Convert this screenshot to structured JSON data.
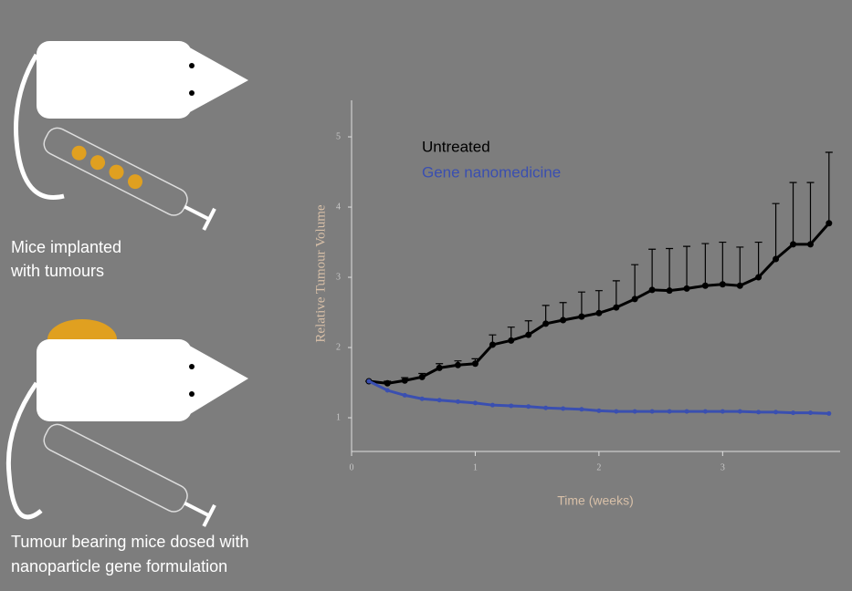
{
  "chart_data": {
    "type": "line",
    "annotations": [
      [
        "Mice implanted",
        "with tumours"
      ],
      [
        "Tumour bearing mice dosed with",
        "nanoparticle gene formulation"
      ]
    ],
    "x_label": "Time (weeks)",
    "y_label": "Relative Tumour Volume",
    "x": [
      0.14,
      0.29,
      0.43,
      0.57,
      0.71,
      0.86,
      1,
      1.14,
      1.29,
      1.43,
      1.57,
      1.71,
      1.86,
      2,
      2.14,
      2.29,
      2.43,
      2.57,
      2.71,
      2.86,
      3,
      3.14,
      3.29,
      3.43,
      3.57,
      3.71,
      3.86
    ],
    "series": [
      {
        "name": "Untreated",
        "color": "#000000",
        "values": [
          1.52,
          1.49,
          1.53,
          1.58,
          1.71,
          1.75,
          1.77,
          2.04,
          2.1,
          2.18,
          2.34,
          2.39,
          2.44,
          2.49,
          2.57,
          2.69,
          2.82,
          2.81,
          2.84,
          2.88,
          2.9,
          2.88,
          3.0,
          3.26,
          3.47,
          3.47,
          3.77
        ],
        "errors": [
          0,
          0.03,
          0.04,
          0.05,
          0.06,
          0.06,
          0.07,
          0.14,
          0.19,
          0.2,
          0.26,
          0.25,
          0.35,
          0.32,
          0.38,
          0.49,
          0.58,
          0.6,
          0.6,
          0.6,
          0.6,
          0.55,
          0.5,
          0.79,
          0.88,
          0.88,
          1.01
        ]
      },
      {
        "name": "Gene nanomedicine",
        "color": "#3a4fb0",
        "values": [
          1.52,
          1.39,
          1.32,
          1.27,
          1.25,
          1.23,
          1.21,
          1.18,
          1.17,
          1.16,
          1.14,
          1.13,
          1.12,
          1.1,
          1.09,
          1.09,
          1.09,
          1.09,
          1.09,
          1.09,
          1.09,
          1.09,
          1.08,
          1.08,
          1.07,
          1.07,
          1.06
        ]
      }
    ],
    "xlim": [
      0,
      3.95
    ],
    "xticks": [
      0,
      1,
      2,
      3
    ],
    "ylim": [
      0.52,
      5.52
    ],
    "yticks": [
      1,
      2,
      3,
      4,
      5
    ],
    "axis_color": "#e0e0e0",
    "label_color": "#d8c0a8"
  }
}
